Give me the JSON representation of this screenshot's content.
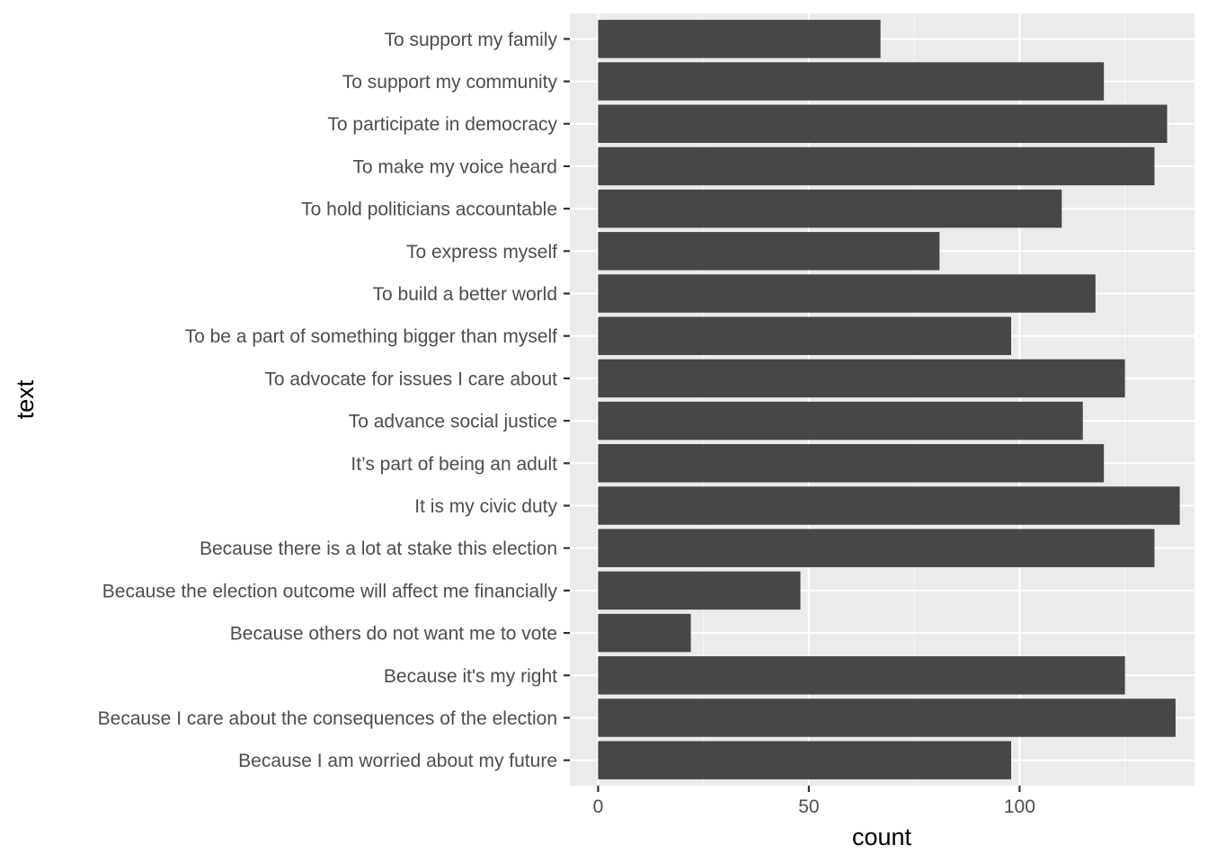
{
  "chart_data": {
    "type": "bar",
    "orientation": "horizontal",
    "title": "",
    "xlabel": "count",
    "ylabel": "text",
    "xlim": [
      -6.7,
      141.5
    ],
    "xticks": [
      0,
      50,
      100
    ],
    "xtick_labels": [
      "0",
      "50",
      "100"
    ],
    "grid": true,
    "categories": [
      "To support my family",
      "To support my community",
      "To participate in democracy",
      "To make my voice heard",
      "To hold politicians accountable",
      "To express myself",
      "To build a better world",
      "To be a part of something bigger than myself",
      "To advocate for issues I care about",
      "To advance social justice",
      "It’s part of being an adult",
      "It is my civic duty",
      "Because there is a lot at stake this election",
      "Because the election outcome will affect me financially",
      "Because others do not want me to vote",
      "Because it's my right",
      "Because I care about the consequences of the election",
      "Because I am worried about my future"
    ],
    "values": [
      67,
      120,
      135,
      132,
      110,
      81,
      118,
      98,
      125,
      115,
      120,
      138,
      132,
      48,
      22,
      125,
      137,
      98
    ],
    "colors": {
      "panel": "#ebebeb",
      "grid_major": "#ffffff",
      "grid_minor": "#f5f5f5",
      "bar": "#474747",
      "tick": "#333333"
    }
  }
}
